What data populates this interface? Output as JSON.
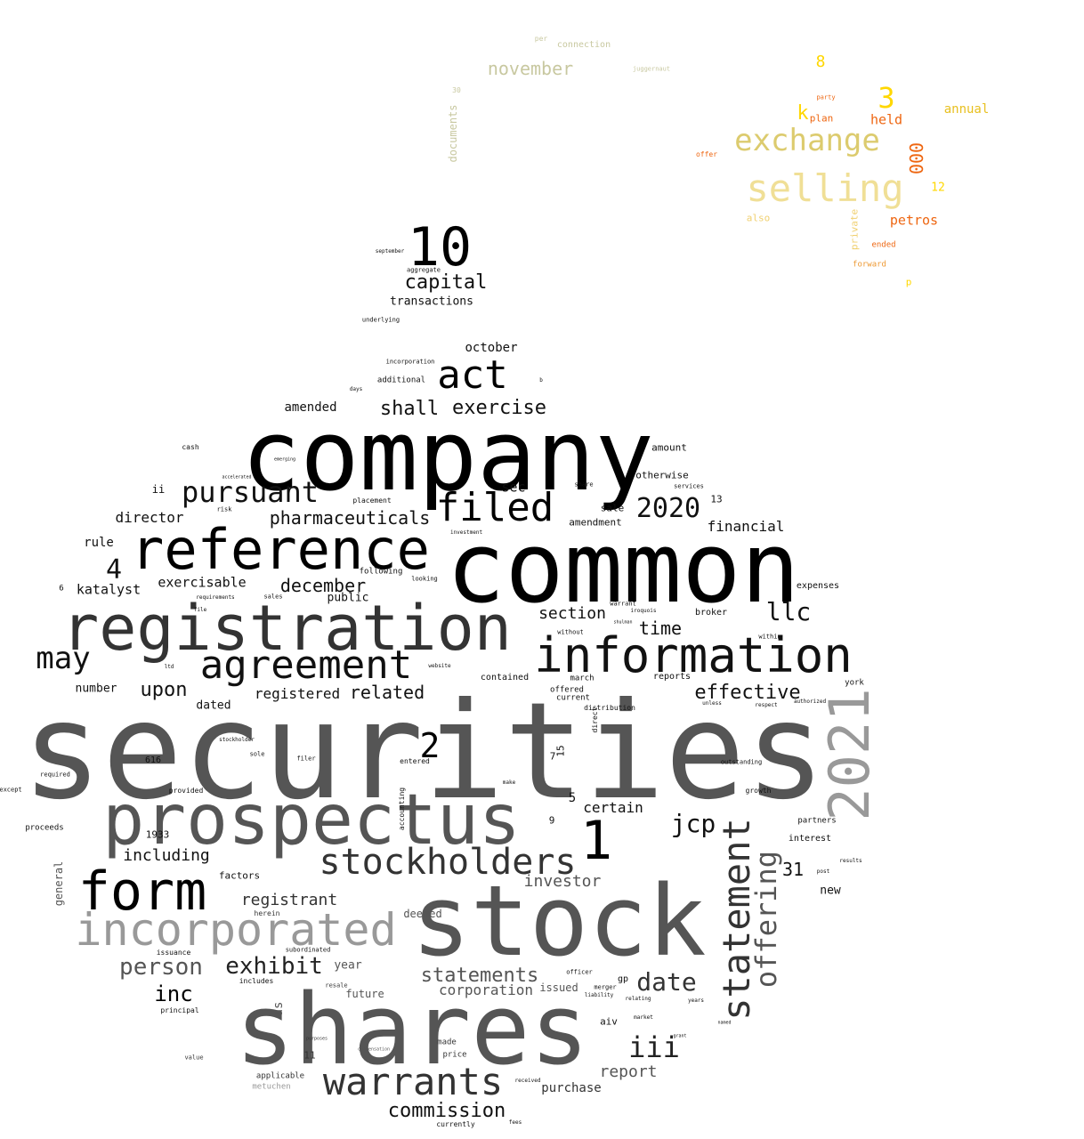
{
  "title": "word cloud",
  "colors": {
    "background": "#ffffff",
    "dark": "#000000",
    "gray": "#555555",
    "light_gray": "#999999",
    "yellow": "#ffd700",
    "orange": "#ee6611",
    "khaki": "#dccb6e",
    "sage": "#b8b88a"
  },
  "words": [
    {
      "text": "securities"
    },
    {
      "text": "company"
    },
    {
      "text": "common"
    },
    {
      "text": "shares"
    },
    {
      "text": "stock"
    },
    {
      "text": "prospectus"
    },
    {
      "text": "registration"
    },
    {
      "text": "reference"
    },
    {
      "text": "information"
    },
    {
      "text": "form"
    },
    {
      "text": "incorporated"
    },
    {
      "text": "agreement"
    },
    {
      "text": "stockholders"
    },
    {
      "text": "warrants"
    },
    {
      "text": "statement"
    },
    {
      "text": "2021"
    },
    {
      "text": "10"
    },
    {
      "text": "act"
    },
    {
      "text": "filed"
    },
    {
      "text": "1"
    },
    {
      "text": "offering"
    },
    {
      "text": "pursuant"
    },
    {
      "text": "may"
    },
    {
      "text": "selling"
    },
    {
      "text": "exchange"
    },
    {
      "text": "2020"
    },
    {
      "text": "iii"
    },
    {
      "text": "date"
    },
    {
      "text": "jcp"
    },
    {
      "text": "exhibit"
    },
    {
      "text": "person"
    },
    {
      "text": "4"
    },
    {
      "text": "2"
    },
    {
      "text": "llc"
    },
    {
      "text": "capital"
    },
    {
      "text": "shall"
    },
    {
      "text": "exercise"
    },
    {
      "text": "pharmaceuticals"
    },
    {
      "text": "statements"
    },
    {
      "text": "commission"
    },
    {
      "text": "inc"
    },
    {
      "text": "upon"
    },
    {
      "text": "effective"
    },
    {
      "text": "time"
    },
    {
      "text": "section"
    },
    {
      "text": "december"
    },
    {
      "text": "related"
    },
    {
      "text": "registered"
    },
    {
      "text": "registrant"
    },
    {
      "text": "including"
    },
    {
      "text": "investor"
    },
    {
      "text": "report"
    },
    {
      "text": "certain"
    },
    {
      "text": "corporation"
    },
    {
      "text": "november"
    },
    {
      "text": "3"
    },
    {
      "text": "financial"
    },
    {
      "text": "director"
    },
    {
      "text": "katalyst"
    },
    {
      "text": "exercisable"
    },
    {
      "text": "purchase"
    },
    {
      "text": "sec"
    },
    {
      "text": "petros"
    },
    {
      "text": "held"
    },
    {
      "text": "k"
    },
    {
      "text": "000"
    },
    {
      "text": "8"
    },
    {
      "text": "31"
    },
    {
      "text": "annual"
    },
    {
      "text": "october"
    },
    {
      "text": "transactions"
    },
    {
      "text": "amended"
    },
    {
      "text": "rule"
    },
    {
      "text": "number"
    },
    {
      "text": "dated"
    },
    {
      "text": "public"
    },
    {
      "text": "year"
    },
    {
      "text": "future"
    },
    {
      "text": "issued"
    },
    {
      "text": "us"
    },
    {
      "text": "deemed"
    },
    {
      "text": "general"
    },
    {
      "text": "factors"
    },
    {
      "text": "new"
    },
    {
      "text": "interest"
    },
    {
      "text": "amount"
    },
    {
      "text": "otherwise"
    },
    {
      "text": "amendment"
    },
    {
      "text": "sale"
    },
    {
      "text": "private"
    },
    {
      "text": "plan"
    },
    {
      "text": "12"
    },
    {
      "text": "also"
    },
    {
      "text": "documents"
    },
    {
      "text": "ii"
    },
    {
      "text": "1933"
    },
    {
      "text": "proceeds"
    },
    {
      "text": "616"
    },
    {
      "text": "aiv"
    },
    {
      "text": "gp"
    },
    {
      "text": "partners"
    },
    {
      "text": "broker"
    },
    {
      "text": "expenses"
    },
    {
      "text": "contained"
    },
    {
      "text": "march"
    },
    {
      "text": "reports"
    },
    {
      "text": "york"
    },
    {
      "text": "offered"
    },
    {
      "text": "current"
    },
    {
      "text": "distribution"
    },
    {
      "text": "following"
    },
    {
      "text": "additional"
    },
    {
      "text": "incorporation"
    },
    {
      "text": "underlying"
    },
    {
      "text": "aggregate"
    },
    {
      "text": "september"
    },
    {
      "text": "connection"
    },
    {
      "text": "per"
    },
    {
      "text": "juggernaut"
    },
    {
      "text": "ended"
    },
    {
      "text": "forward"
    },
    {
      "text": "party"
    },
    {
      "text": "offer"
    },
    {
      "text": "applicable"
    },
    {
      "text": "metuchen"
    },
    {
      "text": "made"
    },
    {
      "text": "price"
    },
    {
      "text": "issuance"
    },
    {
      "text": "subordinated"
    },
    {
      "text": "includes"
    },
    {
      "text": "principal"
    },
    {
      "text": "value"
    },
    {
      "text": "resale"
    },
    {
      "text": "herein"
    },
    {
      "text": "cash"
    },
    {
      "text": "services"
    },
    {
      "text": "entered"
    },
    {
      "text": "stockholder"
    },
    {
      "text": "sole"
    },
    {
      "text": "filer"
    },
    {
      "text": "provided"
    },
    {
      "text": "except"
    },
    {
      "text": "required"
    },
    {
      "text": "requirements"
    },
    {
      "text": "sales"
    },
    {
      "text": "placement"
    },
    {
      "text": "risk"
    },
    {
      "text": "emerging"
    },
    {
      "text": "accelerated"
    },
    {
      "text": "growth"
    },
    {
      "text": "outstanding"
    },
    {
      "text": "authorized"
    },
    {
      "text": "respect"
    },
    {
      "text": "unless"
    },
    {
      "text": "within"
    },
    {
      "text": "warrant"
    },
    {
      "text": "iroquois"
    },
    {
      "text": "shulman"
    },
    {
      "text": "without"
    },
    {
      "text": "investment"
    },
    {
      "text": "share"
    },
    {
      "text": "looking"
    },
    {
      "text": "make"
    },
    {
      "text": "currently"
    },
    {
      "text": "fees"
    },
    {
      "text": "received"
    },
    {
      "text": "market"
    },
    {
      "text": "grant"
    },
    {
      "text": "named"
    },
    {
      "text": "years"
    },
    {
      "text": "relating"
    },
    {
      "text": "merger"
    },
    {
      "text": "officer"
    },
    {
      "text": "liability"
    },
    {
      "text": "results"
    },
    {
      "text": "post"
    },
    {
      "text": "days"
    },
    {
      "text": "ltd"
    },
    {
      "text": "website"
    },
    {
      "text": "file"
    },
    {
      "text": "compensation"
    },
    {
      "text": "purposes"
    },
    {
      "text": "direct"
    },
    {
      "text": "accounting"
    },
    {
      "text": "5"
    },
    {
      "text": "9"
    },
    {
      "text": "7"
    },
    {
      "text": "15"
    },
    {
      "text": "13"
    },
    {
      "text": "11"
    },
    {
      "text": "6"
    },
    {
      "text": "p"
    },
    {
      "text": "b"
    },
    {
      "text": "30"
    }
  ]
}
